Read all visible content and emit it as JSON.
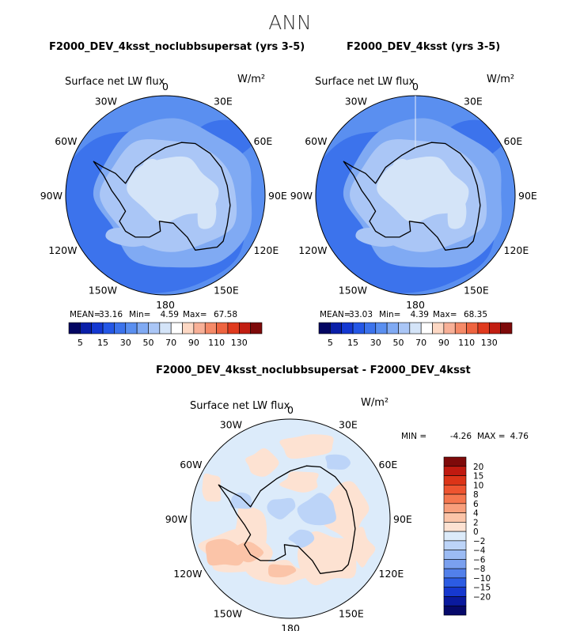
{
  "page_title": "ANN",
  "chart_data": [
    {
      "type": "polar-contour-map",
      "title": "F2000_DEV_4ksst_noclubbsupersat (yrs 3-5)",
      "field_label": "Surface net LW flux",
      "units": "W/m²",
      "longitude_labels": [
        "0",
        "30E",
        "60E",
        "90E",
        "120E",
        "150E",
        "180",
        "150W",
        "120W",
        "90W",
        "60W",
        "30W"
      ],
      "stats": {
        "mean_label": "MEAN=",
        "mean": "33.16",
        "min_label": "Min=",
        "min": "4.59",
        "max_label": "Max=",
        "max": "67.58"
      },
      "colorbar": {
        "orientation": "horizontal",
        "levels": [
          5,
          10,
          15,
          20,
          30,
          40,
          50,
          60,
          70,
          80,
          90,
          100,
          110,
          120,
          130
        ],
        "tick_labels": [
          "5",
          "15",
          "30",
          "50",
          "70",
          "90",
          "110",
          "130"
        ],
        "colors": [
          "#040662",
          "#0a1fa8",
          "#1438d2",
          "#2457e6",
          "#3c73ec",
          "#5a8ff0",
          "#80aaf3",
          "#aac6f6",
          "#d4e4f8",
          "#ffffff",
          "#fdd8c4",
          "#f8b097",
          "#f58a68",
          "#ee6440",
          "#e03a1e",
          "#c21e12",
          "#7e0a0a"
        ]
      }
    },
    {
      "type": "polar-contour-map",
      "title": "F2000_DEV_4ksst (yrs 3-5)",
      "field_label": "Surface net LW flux",
      "units": "W/m²",
      "longitude_labels": [
        "0",
        "30E",
        "60E",
        "90E",
        "120E",
        "150E",
        "180",
        "150W",
        "120W",
        "90W",
        "60W",
        "30W"
      ],
      "stats": {
        "mean_label": "MEAN=",
        "mean": "33.03",
        "min_label": "Min=",
        "min": "4.39",
        "max_label": "Max=",
        "max": "68.35"
      },
      "colorbar": {
        "orientation": "horizontal",
        "levels": [
          5,
          10,
          15,
          20,
          30,
          40,
          50,
          60,
          70,
          80,
          90,
          100,
          110,
          120,
          130
        ],
        "tick_labels": [
          "5",
          "15",
          "30",
          "50",
          "70",
          "90",
          "110",
          "130"
        ],
        "colors": [
          "#040662",
          "#0a1fa8",
          "#1438d2",
          "#2457e6",
          "#3c73ec",
          "#5a8ff0",
          "#80aaf3",
          "#aac6f6",
          "#d4e4f8",
          "#ffffff",
          "#fdd8c4",
          "#f8b097",
          "#f58a68",
          "#ee6440",
          "#e03a1e",
          "#c21e12",
          "#7e0a0a"
        ]
      }
    },
    {
      "type": "polar-contour-map",
      "title": "F2000_DEV_4ksst_noclubbsupersat - F2000_DEV_4ksst",
      "field_label": "Surface net LW flux",
      "units": "W/m²",
      "longitude_labels": [
        "0",
        "30E",
        "60E",
        "90E",
        "120E",
        "150E",
        "180",
        "150W",
        "120W",
        "90W",
        "60W",
        "30W"
      ],
      "stats": {
        "min_label": "MIN =",
        "min": "-4.26",
        "max_label": "MAX =",
        "max": "4.76"
      },
      "colorbar": {
        "orientation": "vertical",
        "levels": [
          20,
          15,
          10,
          8,
          6,
          4,
          2,
          0,
          -2,
          -4,
          -6,
          -8,
          -10,
          -15,
          -20
        ],
        "tick_labels": [
          "20",
          "15",
          "10",
          "8",
          "6",
          "4",
          "2",
          "0",
          "−2",
          "−4",
          "−6",
          "−8",
          "−10",
          "−15",
          "−20"
        ],
        "colors": [
          "#7e0a0a",
          "#c01a10",
          "#dc3418",
          "#ee5430",
          "#f5774f",
          "#f89f7c",
          "#fbc4a8",
          "#fde2d2",
          "#dcebfa",
          "#bcd4f8",
          "#9bbbf4",
          "#7aa0ef",
          "#5280ea",
          "#2c5ce3",
          "#1638cf",
          "#0a1a9e",
          "#06096a"
        ]
      }
    }
  ]
}
